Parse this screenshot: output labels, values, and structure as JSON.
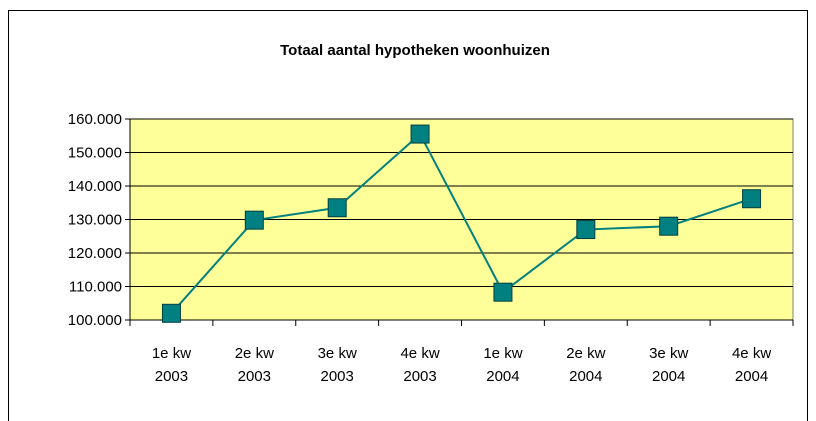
{
  "chart_data": {
    "type": "line",
    "title": "Totaal aantal hypotheken woonhuizen",
    "categories": [
      [
        "1e kw",
        "2003"
      ],
      [
        "2e kw",
        "2003"
      ],
      [
        "3e kw",
        "2003"
      ],
      [
        "4e kw",
        "2003"
      ],
      [
        "1e kw",
        "2004"
      ],
      [
        "2e kw",
        "2004"
      ],
      [
        "3e kw",
        "2004"
      ],
      [
        "4e kw",
        "2004"
      ]
    ],
    "values": [
      102000,
      129800,
      133500,
      155500,
      108300,
      127000,
      128000,
      136200
    ],
    "color": "#008080",
    "plot_background": "#ffff99",
    "ylim": [
      100000,
      160000
    ],
    "yticks": [
      {
        "value": 100000,
        "label": "100.000"
      },
      {
        "value": 110000,
        "label": "110.000"
      },
      {
        "value": 120000,
        "label": "120.000"
      },
      {
        "value": 130000,
        "label": "130.000"
      },
      {
        "value": 140000,
        "label": "140.000"
      },
      {
        "value": 150000,
        "label": "150.000"
      },
      {
        "value": 160000,
        "label": "160.000"
      }
    ],
    "grid": true
  }
}
